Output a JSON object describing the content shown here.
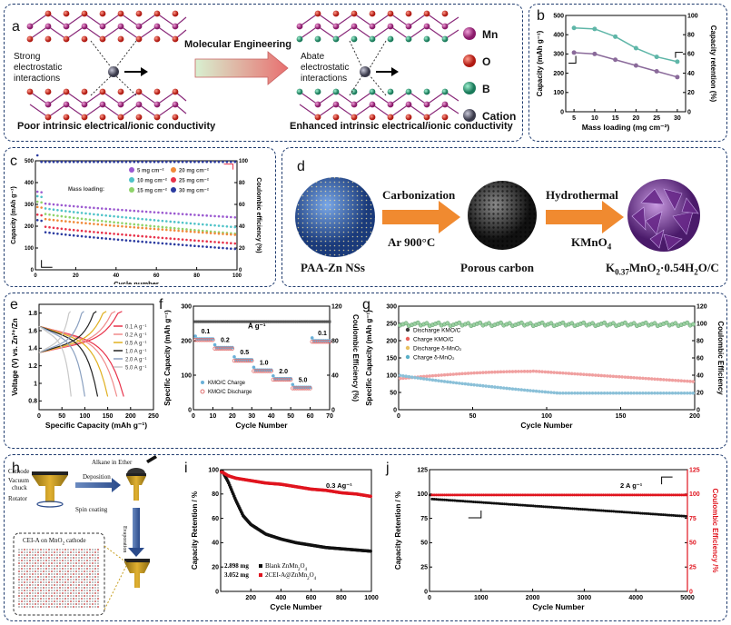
{
  "panels": {
    "a": {
      "label": "a",
      "legend": [
        {
          "name": "Mn",
          "color": "#b0348c"
        },
        {
          "name": "O",
          "color": "#d6332b"
        },
        {
          "name": "B",
          "color": "#2e9c7a"
        },
        {
          "name": "Cation",
          "color": "#4a4a5a"
        }
      ],
      "left_text": [
        "Strong",
        "electrostatic",
        "interactions"
      ],
      "right_text": [
        "Abate",
        "electrostatic",
        "interactions"
      ],
      "arrow_label": "Molecular Engineering",
      "left_caption": "Poor intrinsic electrical/ionic conductivity",
      "right_caption": "Enhanced intrinsic electrical/ionic conductivity"
    },
    "b": {
      "label": "b"
    },
    "c": {
      "label": "c"
    },
    "d": {
      "label": "d",
      "step1_top": "Carbonization",
      "step1_bottom": "Ar  900°C",
      "step2_top": "Hydrothermal",
      "step2_bottom": "KMnO",
      "step2_bottom_sub": "4",
      "name1": "PAA-Zn NSs",
      "name2": "Porous carbon",
      "name3_a": "K",
      "name3_sub1": "0.37",
      "name3_b": "MnO",
      "name3_sub2": "2",
      "name3_c": "·0.54H",
      "name3_sub3": "2",
      "name3_d": "O/C"
    },
    "e": {
      "label": "e"
    },
    "f": {
      "label": "f"
    },
    "g": {
      "label": "g"
    },
    "h": {
      "label": "h",
      "cathode": "Cathode",
      "vacuum": "Vacuum",
      "chuck": "chuck",
      "rotator": "Rotator",
      "alkane": "Alkane in Ether",
      "deposition": "Deposition",
      "spin": "Spin coating",
      "evaporation": "Evaporation",
      "cei": "CEI-A on MnO",
      "cei_sub": "2",
      "cei_tail": " cathode"
    },
    "i": {
      "label": "i"
    },
    "j": {
      "label": "j"
    }
  },
  "chart_data": [
    {
      "id": "b",
      "type": "line",
      "x": [
        5,
        10,
        15,
        20,
        25,
        30
      ],
      "xlabel": "Mass loading (mg cm⁻²)",
      "ylabel": "Capacity (mAh g⁻¹)",
      "y2label": "Capacity retention (%)",
      "xlim": [
        3,
        32
      ],
      "ylim": [
        0,
        500
      ],
      "y2lim": [
        0,
        100
      ],
      "xticks": [
        5,
        10,
        15,
        20,
        25,
        30
      ],
      "yticks": [
        0,
        100,
        200,
        300,
        400,
        500
      ],
      "y2ticks": [
        0,
        20,
        40,
        60,
        80,
        100
      ],
      "series": [
        {
          "name": "Capacity retention",
          "axis": "right",
          "color": "#5fb6a8",
          "values": [
            87,
            86,
            78,
            66,
            57,
            52
          ]
        },
        {
          "name": "Capacity",
          "axis": "left",
          "color": "#8a6a9a",
          "values": [
            307,
            300,
            270,
            240,
            210,
            180
          ]
        }
      ]
    },
    {
      "id": "c",
      "type": "scatter",
      "xlabel": "Cycle number",
      "ylabel": "Capacity (mAh g⁻¹)",
      "y2label": "Coulombic efficiency (%)",
      "xlim": [
        0,
        100
      ],
      "ylim": [
        0,
        500
      ],
      "y2lim": [
        0,
        100
      ],
      "xticks": [
        0,
        20,
        40,
        60,
        80,
        100
      ],
      "yticks": [
        0,
        100,
        200,
        300,
        400,
        500
      ],
      "y2ticks": [
        0,
        20,
        40,
        60,
        80,
        100
      ],
      "legend_title": "Mass loading:",
      "series": [
        {
          "name": "5 mg cm⁻²",
          "color": "#9b59d0",
          "start": 310,
          "end": 240
        },
        {
          "name": "10 mg cm⁻²",
          "color": "#4fc3c8",
          "start": 290,
          "end": 195
        },
        {
          "name": "15 mg cm⁻²",
          "color": "#8fd36a",
          "start": 265,
          "end": 165
        },
        {
          "name": "20 mg cm⁻²",
          "color": "#f08a3a",
          "start": 240,
          "end": 160
        },
        {
          "name": "25 mg cm⁻²",
          "color": "#e8324a",
          "start": 205,
          "end": 120
        },
        {
          "name": "30 mg cm⁻²",
          "color": "#2a3aa0",
          "start": 180,
          "end": 95
        }
      ],
      "ce_value": 99
    },
    {
      "id": "e",
      "type": "line",
      "xlabel": "Specific Capacity (mAh g⁻¹)",
      "ylabel": "Voltage (V) vs. Zn²⁺/Zn",
      "xlim": [
        0,
        250
      ],
      "ylim": [
        0.7,
        1.9
      ],
      "xticks": [
        0,
        50,
        100,
        150,
        200,
        250
      ],
      "yticks": [
        0.8,
        1.0,
        1.2,
        1.4,
        1.6,
        1.8
      ],
      "series": [
        {
          "name": "0.1 A g⁻¹",
          "color": "#e8324a",
          "cap": 185
        },
        {
          "name": "0.2 A g⁻¹",
          "color": "#f08a8a",
          "cap": 170
        },
        {
          "name": "0.5 A g⁻¹",
          "color": "#e0b020",
          "cap": 150
        },
        {
          "name": "1.0 A g⁻¹",
          "color": "#222222",
          "cap": 128
        },
        {
          "name": "2.0 A g⁻¹",
          "color": "#8aa0c0",
          "cap": 100
        },
        {
          "name": "5.0 A g⁻¹",
          "color": "#c8c8c8",
          "cap": 70
        }
      ]
    },
    {
      "id": "f",
      "type": "scatter",
      "xlabel": "Cycle Number",
      "ylabel": "Specific Capacity (mAh g⁻¹)",
      "y2label": "Coulombic Efficiency (%)",
      "xlim": [
        0,
        70
      ],
      "ylim": [
        0,
        300
      ],
      "y2lim": [
        0,
        120
      ],
      "xticks": [
        0,
        10,
        20,
        30,
        40,
        50,
        60,
        70
      ],
      "yticks": [
        0,
        100,
        200,
        300
      ],
      "y2ticks": [
        0,
        40,
        80,
        120
      ],
      "rate_labels": [
        "0.1",
        "0.2",
        "0.5",
        "1.0",
        "2.0",
        "5.0",
        "0.1"
      ],
      "rate_unit": "A g⁻¹",
      "rate_capacity": [
        205,
        180,
        145,
        115,
        90,
        65,
        200
      ],
      "ce_value": 102,
      "legend": [
        "KMO/C  Charge",
        "KMO/C  Discharge"
      ]
    },
    {
      "id": "g",
      "type": "scatter",
      "xlabel": "Cycle Number",
      "ylabel": "Specific Capacity (mAh g⁻¹)",
      "y2label": "Coulombic Efficiency",
      "xlim": [
        0,
        200
      ],
      "ylim": [
        0,
        300
      ],
      "y2lim": [
        0,
        120
      ],
      "xticks": [
        0,
        50,
        100,
        150,
        200
      ],
      "yticks": [
        0,
        50,
        100,
        150,
        200,
        250,
        300
      ],
      "y2ticks": [
        0,
        20,
        40,
        60,
        80,
        100,
        120
      ],
      "legend": [
        "Discharge KMO/C",
        "Charge   KMO/C",
        "Discharge δ-MnO₂",
        "Charge   δ-MnO₂"
      ],
      "legend_colors": [
        "#3a3a3a",
        "#e8605a",
        "#e8c060",
        "#5ab0c8"
      ]
    },
    {
      "id": "i",
      "type": "scatter",
      "xlabel": "Cycle Number",
      "ylabel": "Capacity Retention / %",
      "xlim": [
        0,
        1000
      ],
      "ylim": [
        0,
        100
      ],
      "xticks": [
        200,
        400,
        600,
        800,
        1000
      ],
      "yticks": [
        0,
        20,
        40,
        60,
        80,
        100
      ],
      "rate": "0.3 Ag⁻¹",
      "legend": [
        {
          "mass": "2.898 mg",
          "name": "Blank ZnMn",
          "sub1": "2",
          "tail": "O",
          "sub2": "4",
          "color": "#111111"
        },
        {
          "mass": "3.052 mg",
          "name": "2CEI-A@ZnMn",
          "sub1": "2",
          "tail": "O",
          "sub2": "4",
          "color": "#e0141e"
        }
      ],
      "series": [
        {
          "name": "Blank",
          "color": "#111111",
          "x": [
            10,
            50,
            100,
            150,
            200,
            300,
            400,
            500,
            600,
            700,
            800,
            900,
            1000
          ],
          "values": [
            99,
            90,
            75,
            62,
            55,
            47,
            43,
            40,
            38,
            36,
            35,
            34,
            33
          ]
        },
        {
          "name": "2CEI-A",
          "color": "#e0141e",
          "x": [
            10,
            50,
            100,
            150,
            200,
            300,
            400,
            500,
            600,
            700,
            800,
            900,
            1000
          ],
          "values": [
            98,
            95,
            93,
            92,
            91,
            89,
            88,
            86,
            84,
            83,
            81,
            80,
            78
          ]
        }
      ]
    },
    {
      "id": "j",
      "type": "scatter",
      "xlabel": "Cycle Number",
      "ylabel": "Capacity Retention / %",
      "y2label": "Coulombic Efficiency /%",
      "xlim": [
        0,
        5000
      ],
      "ylim": [
        0,
        125
      ],
      "y2lim": [
        0,
        125
      ],
      "xticks": [
        0,
        1000,
        2000,
        3000,
        4000,
        5000
      ],
      "yticks": [
        0,
        25,
        50,
        75,
        100,
        125
      ],
      "y2ticks": [
        0,
        25,
        50,
        75,
        100,
        125
      ],
      "rate": "2 A g⁻¹",
      "retention_start": 95,
      "retention_end": 77,
      "ce_value": 99
    }
  ]
}
